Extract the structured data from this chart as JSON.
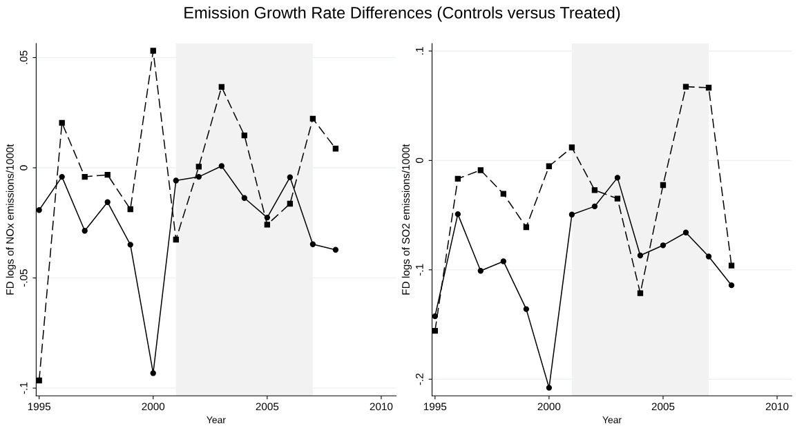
{
  "chart_data": [
    {
      "type": "line",
      "title": "Emission Growth Rate Differences (Controls versus Treated)",
      "xlabel": "Year",
      "ylabel": "FD logs of NOx emissions/1000t",
      "x": [
        1995,
        1996,
        1997,
        1998,
        1999,
        2000,
        2001,
        2002,
        2003,
        2004,
        2005,
        2006,
        2007,
        2008
      ],
      "series": [
        {
          "color": "#000000",
          "marker": "circle",
          "line_style": "solid",
          "values": [
            -0.0192,
            -0.0041,
            -0.0286,
            -0.0156,
            -0.0349,
            -0.0932,
            -0.0058,
            -0.0041,
            0.0008,
            -0.0137,
            -0.0226,
            -0.0043,
            -0.0347,
            -0.0372
          ]
        },
        {
          "color": "#000000",
          "marker": "square",
          "line_style": "dashed",
          "values": [
            -0.0965,
            0.0204,
            -0.0041,
            -0.0032,
            -0.0188,
            0.0531,
            -0.0326,
            0.0005,
            0.0367,
            0.0147,
            -0.0258,
            -0.0163,
            0.0223,
            0.0087
          ]
        }
      ],
      "xlim": [
        1994.87,
        2010.65
      ],
      "xticks": [
        1995,
        2000,
        2005,
        2010
      ],
      "ylim": [
        -0.1035,
        0.0564
      ],
      "yticks": [
        {
          "value": -0.1,
          "label": "-.1"
        },
        {
          "value": -0.05,
          "label": "-.05"
        },
        {
          "value": 0,
          "label": "0"
        },
        {
          "value": 0.05,
          "label": ".05"
        }
      ],
      "bands": [
        {
          "axis": "x",
          "from": 2001,
          "to": 2007,
          "color": "#f2f2f2"
        }
      ],
      "grid": "y",
      "legend": false
    },
    {
      "type": "line",
      "xlabel": "Year",
      "ylabel": "FD logs of SO2 emissions/1000t",
      "x": [
        1995,
        1996,
        1997,
        1998,
        1999,
        2000,
        2001,
        2002,
        2003,
        2004,
        2005,
        2006,
        2007,
        2008
      ],
      "series": [
        {
          "color": "#000000",
          "marker": "circle",
          "line_style": "solid",
          "values": [
            -0.1424,
            -0.0491,
            -0.1009,
            -0.0922,
            -0.1359,
            -0.2078,
            -0.0495,
            -0.042,
            -0.0158,
            -0.0869,
            -0.0776,
            -0.0659,
            -0.0878,
            -0.1141
          ]
        },
        {
          "color": "#000000",
          "marker": "square",
          "line_style": "dashed",
          "values": [
            -0.1558,
            -0.0167,
            -0.0089,
            -0.0305,
            -0.061,
            -0.0053,
            0.0119,
            -0.0271,
            -0.0349,
            -0.1214,
            -0.0225,
            0.0674,
            0.0665,
            -0.0961
          ]
        }
      ],
      "xlim": [
        1994.87,
        2010.65
      ],
      "xticks": [
        1995,
        2000,
        2005,
        2010
      ],
      "ylim": [
        -0.2152,
        0.1069
      ],
      "yticks": [
        {
          "value": -0.2,
          "label": "-.2"
        },
        {
          "value": -0.1,
          "label": "-.1"
        },
        {
          "value": 0,
          "label": "0"
        },
        {
          "value": 0.1,
          "label": ".1"
        }
      ],
      "bands": [
        {
          "axis": "x",
          "from": 2001,
          "to": 2007,
          "color": "#f2f2f2"
        }
      ],
      "grid": "y",
      "legend": false
    }
  ]
}
